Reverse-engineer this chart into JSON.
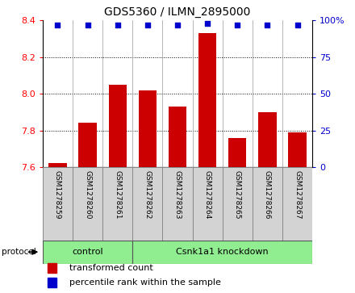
{
  "title": "GDS5360 / ILMN_2895000",
  "samples": [
    "GSM1278259",
    "GSM1278260",
    "GSM1278261",
    "GSM1278262",
    "GSM1278263",
    "GSM1278264",
    "GSM1278265",
    "GSM1278266",
    "GSM1278267"
  ],
  "bar_values": [
    7.62,
    7.84,
    8.05,
    8.02,
    7.93,
    8.33,
    7.76,
    7.9,
    7.79
  ],
  "percentile_values": [
    97,
    97,
    97,
    97,
    97,
    98,
    97,
    97,
    97
  ],
  "ylim": [
    7.6,
    8.4
  ],
  "yticks_left": [
    7.6,
    7.8,
    8.0,
    8.2,
    8.4
  ],
  "yticks_right": [
    0,
    25,
    50,
    75,
    100
  ],
  "bar_color": "#cc0000",
  "dot_color": "#0000cc",
  "bar_base": 7.6,
  "control_count": 3,
  "knockdown_count": 6,
  "legend_bar_label": "transformed count",
  "legend_dot_label": "percentile rank within the sample",
  "protocol_label": "protocol",
  "title_fontsize": 10,
  "tick_fontsize": 8,
  "label_fontsize": 6.5,
  "group_fontsize": 8,
  "legend_fontsize": 8,
  "bg_color": "#d3d3d3",
  "green_color": "#90ee90",
  "grid_yticks": [
    7.8,
    8.0,
    8.2
  ]
}
